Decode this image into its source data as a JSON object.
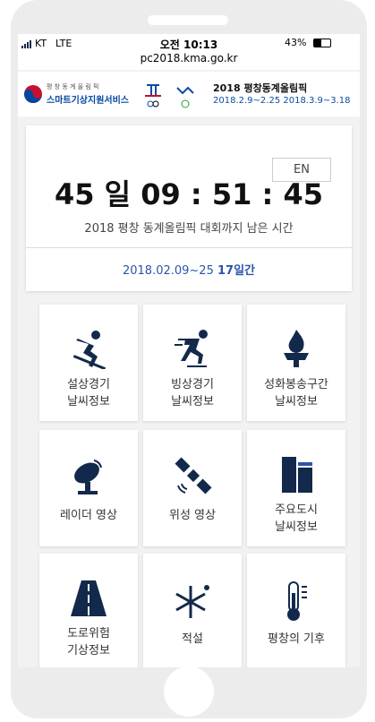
{
  "status": {
    "carrier": "KT",
    "network": "LTE",
    "time": "오전 10:13",
    "battery": "43%",
    "url": "pc2018.kma.go.kr"
  },
  "header": {
    "org_small": "평 창 동 계 올 림 픽",
    "org_name": "스마트기상지원서비스",
    "event_title": "2018 평창동계올림픽",
    "event_dates": "2018.2.9~2.25 2018.3.9~3.18"
  },
  "countdown": {
    "lang": "EN",
    "time": "45 일 09 : 51 : 45",
    "caption": "2018 평창 동계올림픽 대회까지 남은 시간",
    "period": "2018.02.09~25",
    "duration": "17일간"
  },
  "menu": [
    {
      "lines": [
        "설상경기",
        "날씨정보"
      ]
    },
    {
      "lines": [
        "빙상경기",
        "날씨정보"
      ]
    },
    {
      "lines": [
        "성화봉송구간",
        "날씨정보"
      ]
    },
    {
      "lines": [
        "레이더 영상"
      ]
    },
    {
      "lines": [
        "위성 영상"
      ]
    },
    {
      "lines": [
        "주요도시",
        "날씨정보"
      ]
    },
    {
      "lines": [
        "도로위험",
        "기상정보"
      ]
    },
    {
      "lines": [
        "적설"
      ]
    },
    {
      "lines": [
        "평창의 기후"
      ]
    }
  ]
}
